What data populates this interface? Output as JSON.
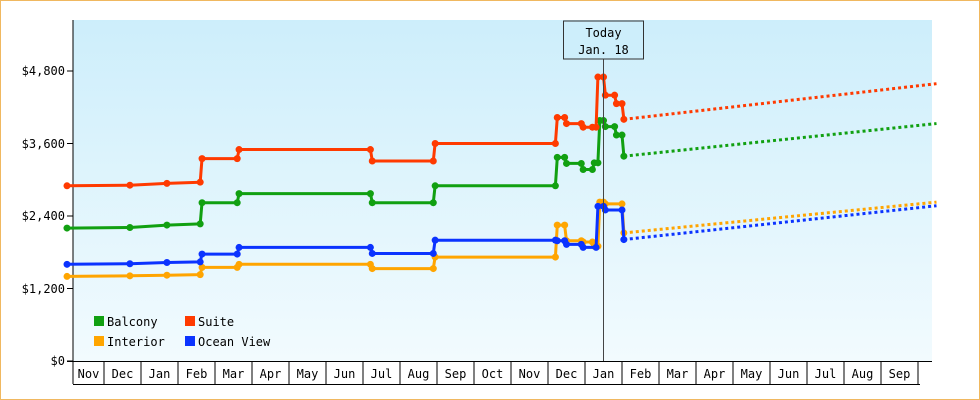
{
  "chart_data": {
    "type": "line",
    "title": "",
    "xlabel": "",
    "ylabel": "",
    "y_ticks": [
      "$0",
      "$1,200",
      "$2,400",
      "$3,600",
      "$4,800"
    ],
    "ylim": [
      0,
      5800
    ],
    "month_labels": [
      "Nov",
      "Dec",
      "Jan",
      "Feb",
      "Mar",
      "Apr",
      "May",
      "Jun",
      "Jul",
      "Aug",
      "Sep",
      "Oct",
      "Nov",
      "Dec",
      "Jan",
      "Feb",
      "Mar",
      "Apr",
      "May",
      "Jun",
      "Jul",
      "Aug",
      "Sep"
    ],
    "today": {
      "line1": "Today",
      "line2": "Jan. 18",
      "month_position": 14.5
    },
    "legend_placement": "bottom-left",
    "legend": [
      {
        "name": "Balcony",
        "color": "#11a011"
      },
      {
        "name": "Suite",
        "color": "#ff3a00"
      },
      {
        "name": "Interior",
        "color": "#ffa500"
      },
      {
        "name": "Ocean View",
        "color": "#0b33ff"
      }
    ],
    "series": [
      {
        "name": "Balcony",
        "color": "#11a011",
        "points": [
          [
            0,
            2200
          ],
          [
            1.7,
            2210
          ],
          [
            2.7,
            2250
          ],
          [
            3.6,
            2270
          ],
          [
            3.65,
            2620
          ],
          [
            4.6,
            2620
          ],
          [
            4.65,
            2770
          ],
          [
            8.2,
            2770
          ],
          [
            8.25,
            2620
          ],
          [
            9.9,
            2620
          ],
          [
            9.95,
            2900
          ],
          [
            13.2,
            2900
          ],
          [
            13.25,
            3370
          ],
          [
            13.45,
            3370
          ],
          [
            13.5,
            3270
          ],
          [
            13.9,
            3270
          ],
          [
            13.95,
            3170
          ],
          [
            14.2,
            3170
          ],
          [
            14.25,
            3280
          ],
          [
            14.35,
            3280
          ],
          [
            14.4,
            3980
          ],
          [
            14.5,
            3980
          ],
          [
            14.55,
            3880
          ],
          [
            14.8,
            3880
          ],
          [
            14.85,
            3740
          ],
          [
            15,
            3740
          ],
          [
            15.05,
            3390
          ]
        ],
        "forecast": [
          [
            15.05,
            3390
          ],
          [
            23.5,
            3930
          ]
        ]
      },
      {
        "name": "Suite",
        "color": "#ff3a00",
        "points": [
          [
            0,
            2900
          ],
          [
            1.7,
            2910
          ],
          [
            2.7,
            2940
          ],
          [
            3.6,
            2960
          ],
          [
            3.65,
            3350
          ],
          [
            4.6,
            3350
          ],
          [
            4.65,
            3500
          ],
          [
            8.2,
            3500
          ],
          [
            8.25,
            3310
          ],
          [
            9.9,
            3310
          ],
          [
            9.95,
            3600
          ],
          [
            13.2,
            3600
          ],
          [
            13.25,
            4030
          ],
          [
            13.45,
            4030
          ],
          [
            13.5,
            3930
          ],
          [
            13.9,
            3930
          ],
          [
            13.95,
            3870
          ],
          [
            14.2,
            3870
          ],
          [
            14.3,
            3870
          ],
          [
            14.35,
            4700
          ],
          [
            14.5,
            4700
          ],
          [
            14.55,
            4400
          ],
          [
            14.8,
            4400
          ],
          [
            14.85,
            4260
          ],
          [
            15,
            4260
          ],
          [
            15.05,
            4000
          ]
        ],
        "forecast": [
          [
            15.05,
            4000
          ],
          [
            23.5,
            4590
          ]
        ]
      },
      {
        "name": "Interior",
        "color": "#ffa500",
        "points": [
          [
            0,
            1400
          ],
          [
            1.7,
            1410
          ],
          [
            2.7,
            1420
          ],
          [
            3.6,
            1430
          ],
          [
            3.65,
            1550
          ],
          [
            4.6,
            1550
          ],
          [
            4.65,
            1600
          ],
          [
            8.2,
            1600
          ],
          [
            8.25,
            1530
          ],
          [
            9.9,
            1530
          ],
          [
            9.95,
            1720
          ],
          [
            13.2,
            1720
          ],
          [
            13.25,
            2250
          ],
          [
            13.45,
            2250
          ],
          [
            13.5,
            1990
          ],
          [
            13.9,
            1990
          ],
          [
            13.95,
            1970
          ],
          [
            14.2,
            1970
          ],
          [
            14.25,
            1900
          ],
          [
            14.35,
            1900
          ],
          [
            14.4,
            2630
          ],
          [
            14.5,
            2630
          ],
          [
            14.55,
            2600
          ],
          [
            15,
            2600
          ],
          [
            15.05,
            2120
          ]
        ],
        "forecast": [
          [
            15.05,
            2120
          ],
          [
            23.5,
            2630
          ]
        ]
      },
      {
        "name": "Ocean View",
        "color": "#0b33ff",
        "points": [
          [
            0,
            1600
          ],
          [
            1.7,
            1610
          ],
          [
            2.7,
            1630
          ],
          [
            3.6,
            1640
          ],
          [
            3.65,
            1770
          ],
          [
            4.6,
            1770
          ],
          [
            4.65,
            1880
          ],
          [
            8.2,
            1880
          ],
          [
            8.25,
            1780
          ],
          [
            9.9,
            1780
          ],
          [
            9.95,
            2000
          ],
          [
            13.2,
            2000
          ],
          [
            13.25,
            1990
          ],
          [
            13.45,
            1990
          ],
          [
            13.5,
            1930
          ],
          [
            13.9,
            1930
          ],
          [
            13.95,
            1880
          ],
          [
            14.3,
            1880
          ],
          [
            14.35,
            2560
          ],
          [
            14.5,
            2560
          ],
          [
            14.55,
            2500
          ],
          [
            15,
            2500
          ],
          [
            15.05,
            2010
          ]
        ],
        "forecast": [
          [
            15.05,
            2010
          ],
          [
            23.5,
            2570
          ]
        ]
      }
    ]
  }
}
